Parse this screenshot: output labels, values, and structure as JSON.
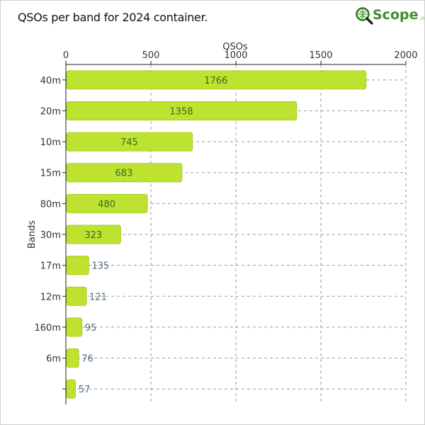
{
  "title": "QSOs per band for 2024 container.",
  "logo": {
    "text": "Scope",
    "suffix": ".org"
  },
  "colors": {
    "bar": "#bde22f",
    "bar_edge": "#a3c91c",
    "grid": "#9a9a9a",
    "label_inside": "#3d6b1c",
    "label_outside": "#4d6e85"
  },
  "chart_data": {
    "type": "bar",
    "orientation": "horizontal",
    "xlabel": "QSOs",
    "ylabel": "Bands",
    "xlim": [
      0,
      2000
    ],
    "xticks": [
      0,
      500,
      1000,
      1500,
      2000
    ],
    "grid": true,
    "categories": [
      "40m",
      "20m",
      "10m",
      "15m",
      "80m",
      "30m",
      "17m",
      "12m",
      "160m",
      "6m",
      ""
    ],
    "values": [
      1766,
      1358,
      745,
      683,
      480,
      323,
      135,
      121,
      95,
      76,
      57
    ]
  }
}
